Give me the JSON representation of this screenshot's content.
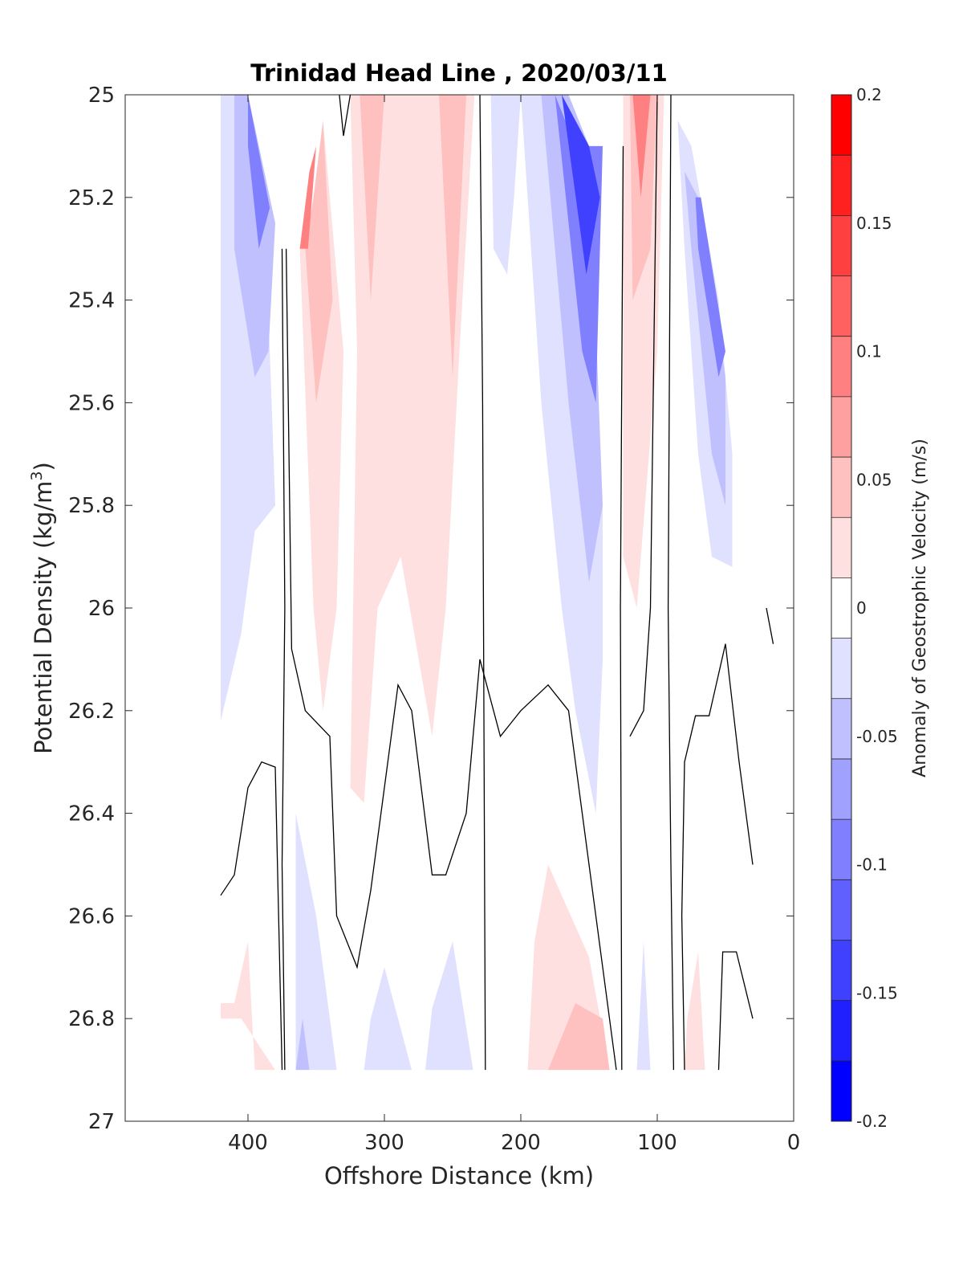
{
  "chart_data": {
    "type": "contour",
    "title": "Trinidad Head Line , 2020/03/11",
    "xlabel": "Offshore Distance (km)",
    "ylabel": "Potential Density (kg/m",
    "ylabel_sup": "3",
    "ylabel_close": ")",
    "xlim": [
      490,
      0
    ],
    "ylim": [
      25,
      27
    ],
    "x_reversed": true,
    "y_reversed": true,
    "xticks": [
      400,
      300,
      200,
      100,
      0
    ],
    "xtick_labels": [
      "400",
      "300",
      "200",
      "100",
      "0"
    ],
    "yticks": [
      25,
      25.2,
      25.4,
      25.6,
      25.8,
      26,
      26.2,
      26.4,
      26.6,
      26.8,
      27
    ],
    "ytick_labels": [
      "25",
      "25.2",
      "25.4",
      "25.6",
      "25.8",
      "26",
      "26.2",
      "26.4",
      "26.6",
      "26.8",
      "27"
    ],
    "colorbar": {
      "label": "Anomaly of Geostrophic Velocity (m/s)",
      "range": [
        -0.2,
        0.2
      ],
      "levels": [
        -0.2,
        -0.175,
        -0.15,
        -0.125,
        -0.1,
        -0.075,
        -0.05,
        -0.025,
        0,
        0.025,
        0.05,
        0.075,
        0.1,
        0.125,
        0.15,
        0.175,
        0.2
      ],
      "colors": [
        "#0000ff",
        "#2020ff",
        "#4040ff",
        "#6060ff",
        "#8080ff",
        "#a0a0ff",
        "#c0c0ff",
        "#e0e0ff",
        "#ffffff",
        "#ffe0e0",
        "#ffc0c0",
        "#ffa0a0",
        "#ff8080",
        "#ff6060",
        "#ff4040",
        "#ff2020",
        "#ff0000"
      ],
      "ticks": [
        0.2,
        0.15,
        0.1,
        0.05,
        0,
        -0.05,
        -0.1,
        -0.15,
        -0.2
      ],
      "tick_labels": [
        "0.2",
        "0.15",
        "0.1",
        "0.05",
        "0",
        "-0.05",
        "-0.1",
        "-0.15",
        "-0.2"
      ]
    },
    "filled_regions": [
      {
        "level": -0.025,
        "points": [
          [
            420,
            25.0
          ],
          [
            400,
            25.0
          ],
          [
            388,
            25.2
          ],
          [
            380,
            25.8
          ],
          [
            395,
            25.85
          ],
          [
            405,
            26.05
          ],
          [
            420,
            26.22
          ]
        ]
      },
      {
        "level": -0.05,
        "points": [
          [
            400,
            25.0
          ],
          [
            380,
            25.25
          ],
          [
            385,
            25.5
          ],
          [
            395,
            25.55
          ],
          [
            410,
            25.3
          ],
          [
            410,
            25.0
          ]
        ]
      },
      {
        "level": -0.1,
        "points": [
          [
            400,
            25.0
          ],
          [
            384,
            25.22
          ],
          [
            392,
            25.3
          ],
          [
            400,
            25.1
          ]
        ]
      },
      {
        "level": 0.025,
        "points": [
          [
            345,
            25.05
          ],
          [
            330,
            25.5
          ],
          [
            335,
            26.0
          ],
          [
            345,
            26.2
          ],
          [
            352,
            26.0
          ],
          [
            362,
            25.3
          ],
          [
            350,
            25.2
          ]
        ]
      },
      {
        "level": 0.05,
        "points": [
          [
            345,
            25.05
          ],
          [
            338,
            25.4
          ],
          [
            350,
            25.6
          ],
          [
            358,
            25.3
          ],
          [
            352,
            25.2
          ]
        ]
      },
      {
        "level": 0.1,
        "points": [
          [
            350,
            25.1
          ],
          [
            356,
            25.3
          ],
          [
            362,
            25.3
          ],
          [
            355,
            25.15
          ]
        ]
      },
      {
        "level": 0.025,
        "points": [
          [
            325,
            25.0
          ],
          [
            320,
            25.5
          ],
          [
            325,
            26.35
          ],
          [
            315,
            26.38
          ],
          [
            305,
            26.0
          ],
          [
            288,
            25.9
          ],
          [
            265,
            26.25
          ],
          [
            255,
            26.0
          ],
          [
            245,
            25.5
          ],
          [
            234,
            25.0
          ]
        ]
      },
      {
        "level": 0.05,
        "points": [
          [
            318,
            25.0
          ],
          [
            310,
            25.4
          ],
          [
            300,
            25.0
          ]
        ]
      },
      {
        "level": 0.05,
        "points": [
          [
            260,
            25.0
          ],
          [
            250,
            25.55
          ],
          [
            240,
            25.0
          ]
        ]
      },
      {
        "level": -0.025,
        "points": [
          [
            222,
            25.0
          ],
          [
            220,
            25.3
          ],
          [
            210,
            25.35
          ],
          [
            205,
            25.2
          ],
          [
            200,
            25.0
          ]
        ]
      },
      {
        "level": -0.025,
        "points": [
          [
            200,
            25.0
          ],
          [
            185,
            25.6
          ],
          [
            170,
            26.0
          ],
          [
            160,
            26.2
          ],
          [
            145,
            26.4
          ],
          [
            140,
            26.1
          ],
          [
            140,
            25.8
          ],
          [
            160,
            25.1
          ],
          [
            170,
            25.0
          ]
        ]
      },
      {
        "level": -0.05,
        "points": [
          [
            185,
            25.0
          ],
          [
            165,
            25.6
          ],
          [
            150,
            25.95
          ],
          [
            140,
            25.8
          ],
          [
            150,
            25.1
          ],
          [
            165,
            25.0
          ]
        ]
      },
      {
        "level": -0.1,
        "points": [
          [
            175,
            25.0
          ],
          [
            155,
            25.5
          ],
          [
            145,
            25.6
          ],
          [
            140,
            25.1
          ],
          [
            160,
            25.1
          ]
        ]
      },
      {
        "level": -0.15,
        "points": [
          [
            170,
            25.0
          ],
          [
            152,
            25.35
          ],
          [
            142,
            25.2
          ],
          [
            150,
            25.1
          ]
        ]
      },
      {
        "level": 0.025,
        "points": [
          [
            125,
            25.0
          ],
          [
            125,
            25.9
          ],
          [
            115,
            26.0
          ],
          [
            100,
            25.5
          ],
          [
            95,
            25.0
          ]
        ]
      },
      {
        "level": 0.05,
        "points": [
          [
            120,
            25.0
          ],
          [
            118,
            25.4
          ],
          [
            105,
            25.3
          ],
          [
            100,
            25.0
          ]
        ]
      },
      {
        "level": 0.1,
        "points": [
          [
            118,
            25.0
          ],
          [
            112,
            25.2
          ],
          [
            105,
            25.0
          ]
        ]
      },
      {
        "level": -0.025,
        "points": [
          [
            85,
            25.05
          ],
          [
            80,
            25.3
          ],
          [
            70,
            25.7
          ],
          [
            60,
            25.9
          ],
          [
            45,
            25.92
          ],
          [
            45,
            25.7
          ],
          [
            55,
            25.4
          ],
          [
            75,
            25.1
          ]
        ]
      },
      {
        "level": -0.05,
        "points": [
          [
            80,
            25.15
          ],
          [
            75,
            25.3
          ],
          [
            60,
            25.7
          ],
          [
            50,
            25.8
          ],
          [
            50,
            25.55
          ],
          [
            70,
            25.2
          ]
        ]
      },
      {
        "level": -0.1,
        "points": [
          [
            72,
            25.2
          ],
          [
            70,
            25.3
          ],
          [
            55,
            25.55
          ],
          [
            50,
            25.5
          ],
          [
            68,
            25.2
          ]
        ]
      },
      {
        "level": 0.025,
        "points": [
          [
            420,
            26.77
          ],
          [
            410,
            26.77
          ],
          [
            400,
            26.65
          ],
          [
            395,
            26.9
          ],
          [
            380,
            26.9
          ],
          [
            405,
            26.8
          ],
          [
            420,
            26.8
          ]
        ]
      },
      {
        "level": -0.025,
        "points": [
          [
            365,
            26.4
          ],
          [
            350,
            26.6
          ],
          [
            335,
            26.9
          ],
          [
            365,
            26.9
          ]
        ]
      },
      {
        "level": -0.05,
        "points": [
          [
            360,
            26.8
          ],
          [
            355,
            26.9
          ],
          [
            365,
            26.9
          ]
        ]
      },
      {
        "level": -0.025,
        "points": [
          [
            300,
            26.7
          ],
          [
            290,
            26.8
          ],
          [
            280,
            26.9
          ],
          [
            315,
            26.9
          ],
          [
            310,
            26.8
          ]
        ]
      },
      {
        "level": -0.025,
        "points": [
          [
            250,
            26.65
          ],
          [
            235,
            26.9
          ],
          [
            270,
            26.9
          ],
          [
            265,
            26.78
          ]
        ]
      },
      {
        "level": 0.025,
        "points": [
          [
            180,
            26.5
          ],
          [
            150,
            26.68
          ],
          [
            135,
            26.9
          ],
          [
            195,
            26.9
          ],
          [
            190,
            26.65
          ]
        ]
      },
      {
        "level": 0.05,
        "points": [
          [
            160,
            26.77
          ],
          [
            140,
            26.8
          ],
          [
            135,
            26.9
          ],
          [
            180,
            26.9
          ]
        ]
      },
      {
        "level": -0.025,
        "points": [
          [
            110,
            26.65
          ],
          [
            105,
            26.9
          ],
          [
            115,
            26.9
          ]
        ]
      },
      {
        "level": 0.025,
        "points": [
          [
            70,
            26.67
          ],
          [
            65,
            26.9
          ],
          [
            80,
            26.9
          ],
          [
            78,
            26.8
          ]
        ]
      }
    ],
    "contour_lines": [
      [
        [
          325,
          25.0
        ],
        [
          330,
          25.08
        ],
        [
          333,
          25.0
        ]
      ],
      [
        [
          230,
          25.0
        ],
        [
          228,
          25.6
        ],
        [
          226,
          26.9
        ]
      ],
      [
        [
          125,
          25.1
        ],
        [
          127,
          26.0
        ],
        [
          126,
          26.9
        ]
      ],
      [
        [
          90,
          25.0
        ],
        [
          92,
          26.0
        ],
        [
          90,
          26.5
        ],
        [
          88,
          26.9
        ]
      ],
      [
        [
          375,
          25.3
        ],
        [
          373,
          26.0
        ],
        [
          375,
          26.5
        ],
        [
          373,
          26.9
        ]
      ],
      [
        [
          372,
          25.3
        ],
        [
          368,
          26.08
        ],
        [
          358,
          26.2
        ],
        [
          340,
          26.25
        ],
        [
          335,
          26.6
        ],
        [
          320,
          26.7
        ],
        [
          310,
          26.55
        ],
        [
          290,
          26.15
        ],
        [
          280,
          26.2
        ],
        [
          265,
          26.52
        ],
        [
          255,
          26.52
        ],
        [
          240,
          26.4
        ],
        [
          230,
          26.1
        ],
        [
          215,
          26.25
        ],
        [
          200,
          26.2
        ],
        [
          180,
          26.15
        ],
        [
          165,
          26.2
        ],
        [
          150,
          26.5
        ],
        [
          130,
          26.9
        ]
      ],
      [
        [
          420,
          26.56
        ],
        [
          410,
          26.52
        ],
        [
          400,
          26.35
        ],
        [
          390,
          26.3
        ],
        [
          380,
          26.31
        ],
        [
          375,
          26.9
        ]
      ],
      [
        [
          120,
          26.25
        ],
        [
          110,
          26.2
        ],
        [
          105,
          26.0
        ],
        [
          100,
          25.0
        ]
      ],
      [
        [
          80,
          26.9
        ],
        [
          82,
          26.6
        ],
        [
          80,
          26.3
        ],
        [
          72,
          26.21
        ],
        [
          62,
          26.21
        ],
        [
          50,
          26.07
        ],
        [
          40,
          26.3
        ],
        [
          30,
          26.5
        ]
      ],
      [
        [
          55,
          26.9
        ],
        [
          52,
          26.67
        ],
        [
          42,
          26.67
        ],
        [
          30,
          26.8
        ]
      ],
      [
        [
          20,
          26.0
        ],
        [
          15,
          26.07
        ]
      ]
    ]
  }
}
